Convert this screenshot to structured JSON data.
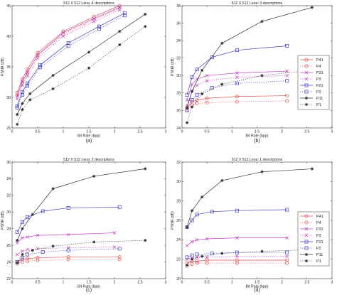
{
  "panels_meta": [
    "(a)",
    "(b)",
    "(c)",
    "(d)"
  ],
  "legend_order": [
    "P41",
    "P4",
    "P31",
    "P3",
    "P21",
    "P2",
    "P11",
    "P1"
  ],
  "colors": {
    "P41": "#e05050",
    "P4": "#e05050",
    "P31": "#c040c0",
    "P3": "#c040c0",
    "P21": "#4040c0",
    "P2": "#4040c0",
    "P11": "#303030",
    "P1": "#303030",
    "axis": "#333333"
  },
  "chart_data": [
    {
      "type": "line",
      "title": "512 X 512 Lena: 4 descriptions",
      "caption": "(a)",
      "xlabel": "Bit Rate (bpp)",
      "ylabel": "PSNR (dB)",
      "xlim": [
        0,
        3
      ],
      "ylim": [
        25,
        45
      ],
      "xticks": [
        "0",
        "0.5",
        "1",
        "1.5",
        "2",
        "2.5",
        "3"
      ],
      "yticks": [
        "25",
        "30",
        "35",
        "40",
        "45"
      ],
      "legend": "none",
      "series": [
        {
          "name": "P41",
          "x": [
            0.1,
            0.2,
            0.3,
            0.5,
            1.0,
            1.6,
            2.1
          ],
          "y": [
            30.8,
            33.0,
            34.6,
            37.3,
            40.8,
            43.2,
            45.0
          ]
        },
        {
          "name": "P4",
          "x": [
            0.1,
            0.2,
            0.3,
            0.5,
            1.0,
            1.6,
            2.1
          ],
          "y": [
            30.4,
            32.4,
            34.0,
            36.9,
            40.3,
            42.7,
            44.6
          ]
        },
        {
          "name": "P31",
          "x": [
            0.1,
            0.2,
            0.3,
            0.5,
            1.0,
            1.6,
            2.1
          ],
          "y": [
            30.2,
            32.6,
            34.1,
            36.9,
            40.6,
            42.9,
            44.7
          ]
        },
        {
          "name": "P3",
          "x": [
            0.1,
            0.2,
            0.3,
            0.5,
            1.0,
            1.6,
            2.1
          ],
          "y": [
            29.8,
            32.0,
            33.5,
            36.4,
            40.0,
            42.4,
            44.3
          ]
        },
        {
          "name": "P21",
          "x": [
            0.1,
            0.2,
            0.3,
            0.55,
            1.1,
            1.7,
            2.2
          ],
          "y": [
            28.6,
            30.9,
            32.3,
            35.3,
            38.9,
            41.6,
            43.8
          ]
        },
        {
          "name": "P2",
          "x": [
            0.1,
            0.2,
            0.3,
            0.55,
            1.1,
            1.7,
            2.2
          ],
          "y": [
            28.3,
            30.4,
            31.9,
            34.9,
            38.4,
            41.2,
            43.4
          ]
        },
        {
          "name": "P11",
          "x": [
            0.1,
            0.2,
            0.35,
            0.8,
            1.5,
            2.1,
            2.6
          ],
          "y": [
            27.2,
            29.0,
            30.6,
            33.6,
            37.4,
            40.8,
            43.6
          ]
        },
        {
          "name": "P1",
          "x": [
            0.1,
            0.2,
            0.35,
            0.8,
            1.5,
            2.1,
            2.6
          ],
          "y": [
            25.6,
            28.0,
            29.6,
            31.4,
            34.8,
            38.6,
            41.6
          ]
        }
      ]
    },
    {
      "type": "line",
      "title": "512 X 512 Lena: 3 descriptions",
      "caption": "(b)",
      "xlabel": "Bit Rate (bpp)",
      "ylabel": "PSNR (dB)",
      "xlim": [
        0,
        3
      ],
      "ylim": [
        24,
        38
      ],
      "xticks": [
        "0",
        "0.5",
        "1",
        "1.5",
        "2",
        "2.5",
        "3"
      ],
      "yticks": [
        "24",
        "26",
        "28",
        "30",
        "32",
        "34",
        "36",
        "38"
      ],
      "legend": "right",
      "series": [
        {
          "name": "P41",
          "x": [
            0.1,
            0.2,
            0.3,
            0.5,
            1.1,
            2.1
          ],
          "y": [
            26.3,
            27.0,
            27.2,
            27.4,
            27.6,
            27.7
          ]
        },
        {
          "name": "P4",
          "x": [
            0.1,
            0.2,
            0.3,
            0.5,
            1.1,
            2.1
          ],
          "y": [
            26.1,
            26.6,
            26.8,
            26.9,
            27.0,
            27.1
          ]
        },
        {
          "name": "P31",
          "x": [
            0.1,
            0.2,
            0.3,
            0.5,
            1.1,
            2.1
          ],
          "y": [
            27.2,
            29.0,
            29.6,
            30.0,
            30.3,
            30.5
          ]
        },
        {
          "name": "P3",
          "x": [
            0.1,
            0.2,
            0.3,
            0.5,
            1.1,
            2.1
          ],
          "y": [
            26.6,
            28.2,
            28.9,
            29.4,
            29.8,
            30.0
          ]
        },
        {
          "name": "P21",
          "x": [
            0.1,
            0.2,
            0.3,
            0.6,
            1.1,
            2.1
          ],
          "y": [
            27.8,
            29.8,
            30.7,
            32.1,
            32.9,
            33.4
          ]
        },
        {
          "name": "P2",
          "x": [
            0.1,
            0.2,
            0.3,
            0.6,
            1.1,
            2.1
          ],
          "y": [
            26.0,
            27.2,
            27.8,
            28.6,
            29.1,
            29.4
          ]
        },
        {
          "name": "P11",
          "x": [
            0.1,
            0.2,
            0.4,
            0.8,
            1.6,
            2.6
          ],
          "y": [
            26.3,
            28.2,
            30.6,
            33.7,
            36.2,
            37.8
          ]
        },
        {
          "name": "P1",
          "x": [
            0.1,
            0.2,
            0.4,
            0.8,
            1.6,
            2.6
          ],
          "y": [
            24.6,
            26.4,
            27.9,
            29.0,
            30.0,
            30.6
          ]
        }
      ]
    },
    {
      "type": "line",
      "title": "512 X 512 Lena: 2 descriptions",
      "caption": "(c)",
      "xlabel": "Bit Rate (bpp)",
      "ylabel": "PSNR (dB)",
      "xlim": [
        0,
        3
      ],
      "ylim": [
        22,
        36
      ],
      "xticks": [
        "0",
        "0.5",
        "1",
        "1.5",
        "2",
        "2.5",
        "3"
      ],
      "yticks": [
        "22",
        "24",
        "26",
        "28",
        "30",
        "32",
        "34",
        "36"
      ],
      "legend": "none",
      "series": [
        {
          "name": "P41",
          "x": [
            0.1,
            0.2,
            0.3,
            0.5,
            1.1,
            2.1
          ],
          "y": [
            24.0,
            24.3,
            24.4,
            24.5,
            24.6,
            24.6
          ]
        },
        {
          "name": "P4",
          "x": [
            0.1,
            0.2,
            0.3,
            0.5,
            1.1,
            2.1
          ],
          "y": [
            23.8,
            24.0,
            24.1,
            24.2,
            24.3,
            24.3
          ]
        },
        {
          "name": "P31",
          "x": [
            0.1,
            0.2,
            0.3,
            0.5,
            1.1,
            2.0
          ],
          "y": [
            26.3,
            26.9,
            27.0,
            27.2,
            27.3,
            27.5
          ]
        },
        {
          "name": "P3",
          "x": [
            0.1,
            0.2,
            0.3,
            0.5,
            1.1,
            2.0
          ],
          "y": [
            24.9,
            25.3,
            25.5,
            25.6,
            25.7,
            25.8
          ]
        },
        {
          "name": "P21",
          "x": [
            0.1,
            0.2,
            0.3,
            0.6,
            1.1,
            2.1
          ],
          "y": [
            27.6,
            28.8,
            29.4,
            30.1,
            30.5,
            30.6
          ]
        },
        {
          "name": "P2",
          "x": [
            0.1,
            0.2,
            0.3,
            0.6,
            1.1,
            2.1
          ],
          "y": [
            24.0,
            24.5,
            24.9,
            25.2,
            25.4,
            25.6
          ]
        },
        {
          "name": "P11",
          "x": [
            0.1,
            0.2,
            0.4,
            0.8,
            1.6,
            2.6
          ],
          "y": [
            26.6,
            28.0,
            29.7,
            32.8,
            34.3,
            35.2
          ]
        },
        {
          "name": "P1",
          "x": [
            0.1,
            0.2,
            0.4,
            0.8,
            1.6,
            2.6
          ],
          "y": [
            23.9,
            24.9,
            25.4,
            25.9,
            26.4,
            26.6
          ]
        }
      ]
    },
    {
      "type": "line",
      "title": "512 X 512 Lena: 1 descriptions",
      "caption": "(d)",
      "xlabel": "Bit Rate (bpp)",
      "ylabel": "PSNR (dB)",
      "xlim": [
        0,
        3
      ],
      "ylim": [
        20,
        32
      ],
      "xticks": [
        "0",
        "0.5",
        "1",
        "1.5",
        "2",
        "2.5",
        "3"
      ],
      "yticks": [
        "20",
        "22",
        "24",
        "26",
        "28",
        "30",
        "32"
      ],
      "legend": "right",
      "series": [
        {
          "name": "P41",
          "x": [
            0.1,
            0.2,
            0.3,
            0.5,
            1.1,
            2.1
          ],
          "y": [
            21.6,
            21.8,
            21.8,
            21.9,
            21.9,
            21.9
          ]
        },
        {
          "name": "P4",
          "x": [
            0.1,
            0.2,
            0.3,
            0.5,
            1.1,
            2.1
          ],
          "y": [
            21.3,
            21.5,
            21.6,
            21.6,
            21.6,
            21.6
          ]
        },
        {
          "name": "P31",
          "x": [
            0.1,
            0.2,
            0.3,
            0.5,
            1.1,
            2.1
          ],
          "y": [
            23.4,
            23.8,
            24.0,
            24.1,
            24.2,
            24.2
          ]
        },
        {
          "name": "P3",
          "x": [
            0.1,
            0.2,
            0.3,
            0.5,
            1.1,
            2.1
          ],
          "y": [
            22.0,
            22.1,
            22.2,
            22.2,
            22.3,
            22.3
          ]
        },
        {
          "name": "P21",
          "x": [
            0.1,
            0.2,
            0.3,
            0.6,
            1.1,
            2.1
          ],
          "y": [
            25.3,
            26.0,
            26.6,
            26.9,
            27.0,
            27.1
          ]
        },
        {
          "name": "P2",
          "x": [
            0.1,
            0.2,
            0.3,
            0.6,
            1.1,
            2.1
          ],
          "y": [
            22.2,
            22.4,
            22.5,
            22.6,
            22.7,
            22.7
          ]
        },
        {
          "name": "P11",
          "x": [
            0.1,
            0.2,
            0.4,
            0.8,
            1.6,
            2.6
          ],
          "y": [
            25.3,
            27.0,
            28.4,
            30.1,
            31.0,
            31.3
          ]
        },
        {
          "name": "P1",
          "x": [
            0.1,
            0.2,
            0.4,
            0.8,
            1.6,
            2.6
          ],
          "y": [
            21.4,
            22.0,
            22.3,
            22.6,
            22.8,
            23.0
          ]
        }
      ]
    }
  ]
}
